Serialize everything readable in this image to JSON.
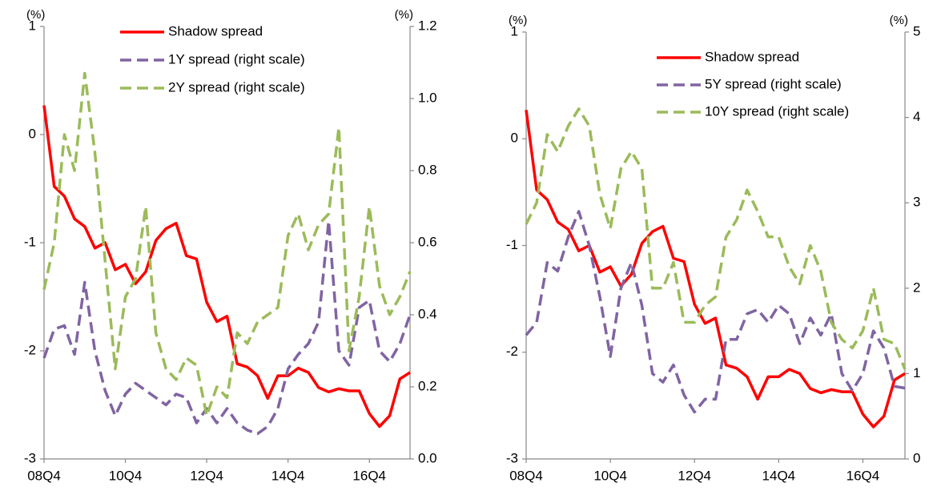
{
  "chart_data": [
    {
      "type": "line",
      "categories": [
        "08Q4",
        null,
        null,
        null,
        null,
        null,
        null,
        null,
        "10Q4",
        null,
        null,
        null,
        null,
        null,
        null,
        null,
        "12Q4",
        null,
        null,
        null,
        null,
        null,
        null,
        null,
        "14Q4",
        null,
        null,
        null,
        null,
        null,
        null,
        null,
        "16Q4",
        null,
        null,
        null,
        null
      ],
      "y_unit": "(%)",
      "y2_unit": "(%)",
      "ylim": [
        -3,
        1
      ],
      "yticks": [
        -3,
        -2,
        -1,
        0,
        1
      ],
      "y2lim": [
        0,
        1.2
      ],
      "y2ticks": [
        {
          "value": 0,
          "label": "0.0"
        },
        0.2,
        0.4,
        0.6,
        0.8,
        {
          "value": 1,
          "label": "1.0"
        },
        1.2
      ],
      "series": [
        {
          "name": "Shadow spread",
          "color": "#ff0000",
          "dash": false,
          "values": [
            0.27,
            -0.48,
            -0.57,
            -0.78,
            -0.85,
            -1.05,
            -1.0,
            -1.25,
            -1.2,
            -1.38,
            -1.27,
            -0.98,
            -0.87,
            -0.82,
            -1.12,
            -1.15,
            -1.55,
            -1.73,
            -1.68,
            -2.12,
            -2.15,
            -2.23,
            -2.44,
            -2.23,
            -2.23,
            -2.16,
            -2.2,
            -2.34,
            -2.38,
            -2.35,
            -2.37,
            -2.37,
            -2.58,
            -2.7,
            -2.6,
            -2.26,
            -2.2
          ]
        },
        {
          "name": "1Y spread (right scale)",
          "color": "#8064a2",
          "dash": true,
          "axis": "y2",
          "values": [
            0.28,
            0.36,
            0.37,
            0.29,
            0.49,
            0.3,
            0.19,
            0.12,
            0.18,
            0.21,
            0.19,
            0.17,
            0.15,
            0.18,
            0.17,
            0.1,
            0.14,
            0.1,
            0.14,
            0.1,
            0.08,
            0.07,
            0.09,
            0.14,
            0.25,
            0.29,
            0.32,
            0.38,
            0.66,
            0.3,
            0.26,
            0.42,
            0.44,
            0.3,
            0.27,
            0.32,
            0.4
          ]
        },
        {
          "name": "2Y spread (right scale)",
          "color": "#9bbb59",
          "dash": true,
          "axis": "y2",
          "values": [
            0.47,
            0.6,
            0.9,
            0.8,
            1.07,
            0.85,
            0.55,
            0.25,
            0.45,
            0.5,
            0.7,
            0.35,
            0.25,
            0.22,
            0.28,
            0.26,
            0.12,
            0.2,
            0.17,
            0.35,
            0.32,
            0.38,
            0.4,
            0.42,
            0.62,
            0.68,
            0.58,
            0.65,
            0.68,
            0.92,
            0.3,
            0.45,
            0.7,
            0.48,
            0.4,
            0.45,
            0.52
          ]
        }
      ]
    },
    {
      "type": "line",
      "categories": [
        "08Q4",
        null,
        null,
        null,
        null,
        null,
        null,
        null,
        "10Q4",
        null,
        null,
        null,
        null,
        null,
        null,
        null,
        "12Q4",
        null,
        null,
        null,
        null,
        null,
        null,
        null,
        "14Q4",
        null,
        null,
        null,
        null,
        null,
        null,
        null,
        "16Q4",
        null,
        null,
        null,
        null
      ],
      "y_unit": "(%)",
      "y2_unit": "(%)",
      "ylim": [
        -3,
        1
      ],
      "yticks": [
        -3,
        -2,
        -1,
        0,
        1
      ],
      "y2lim": [
        0,
        5
      ],
      "y2ticks": [
        0,
        1,
        2,
        3,
        4,
        5
      ],
      "series": [
        {
          "name": "Shadow spread",
          "color": "#ff0000",
          "dash": false,
          "values": [
            0.27,
            -0.48,
            -0.57,
            -0.78,
            -0.85,
            -1.05,
            -1.0,
            -1.25,
            -1.2,
            -1.38,
            -1.27,
            -0.98,
            -0.87,
            -0.82,
            -1.12,
            -1.15,
            -1.55,
            -1.73,
            -1.68,
            -2.12,
            -2.15,
            -2.23,
            -2.44,
            -2.23,
            -2.23,
            -2.16,
            -2.2,
            -2.34,
            -2.38,
            -2.35,
            -2.37,
            -2.37,
            -2.58,
            -2.7,
            -2.6,
            -2.26,
            -2.2
          ]
        },
        {
          "name": "5Y spread (right scale)",
          "color": "#8064a2",
          "dash": true,
          "axis": "y2",
          "values": [
            1.45,
            1.6,
            2.3,
            2.2,
            2.6,
            2.9,
            2.5,
            1.9,
            1.2,
            2.0,
            2.3,
            1.8,
            1.0,
            0.9,
            1.1,
            0.75,
            0.55,
            0.7,
            0.7,
            1.4,
            1.4,
            1.7,
            1.75,
            1.6,
            1.8,
            1.7,
            1.35,
            1.65,
            1.45,
            1.7,
            1.0,
            0.8,
            1.0,
            1.5,
            1.3,
            0.85,
            0.83
          ]
        },
        {
          "name": "10Y spread (right scale)",
          "color": "#9bbb59",
          "dash": true,
          "axis": "y2",
          "values": [
            2.75,
            3.0,
            3.8,
            3.6,
            3.9,
            4.1,
            3.9,
            3.1,
            2.7,
            3.4,
            3.6,
            3.4,
            2.0,
            2.0,
            2.3,
            1.6,
            1.6,
            1.8,
            1.9,
            2.6,
            2.8,
            3.15,
            2.9,
            2.6,
            2.6,
            2.25,
            2.05,
            2.5,
            2.2,
            1.6,
            1.4,
            1.3,
            1.5,
            2.0,
            1.4,
            1.35,
            1.05
          ]
        }
      ]
    }
  ]
}
